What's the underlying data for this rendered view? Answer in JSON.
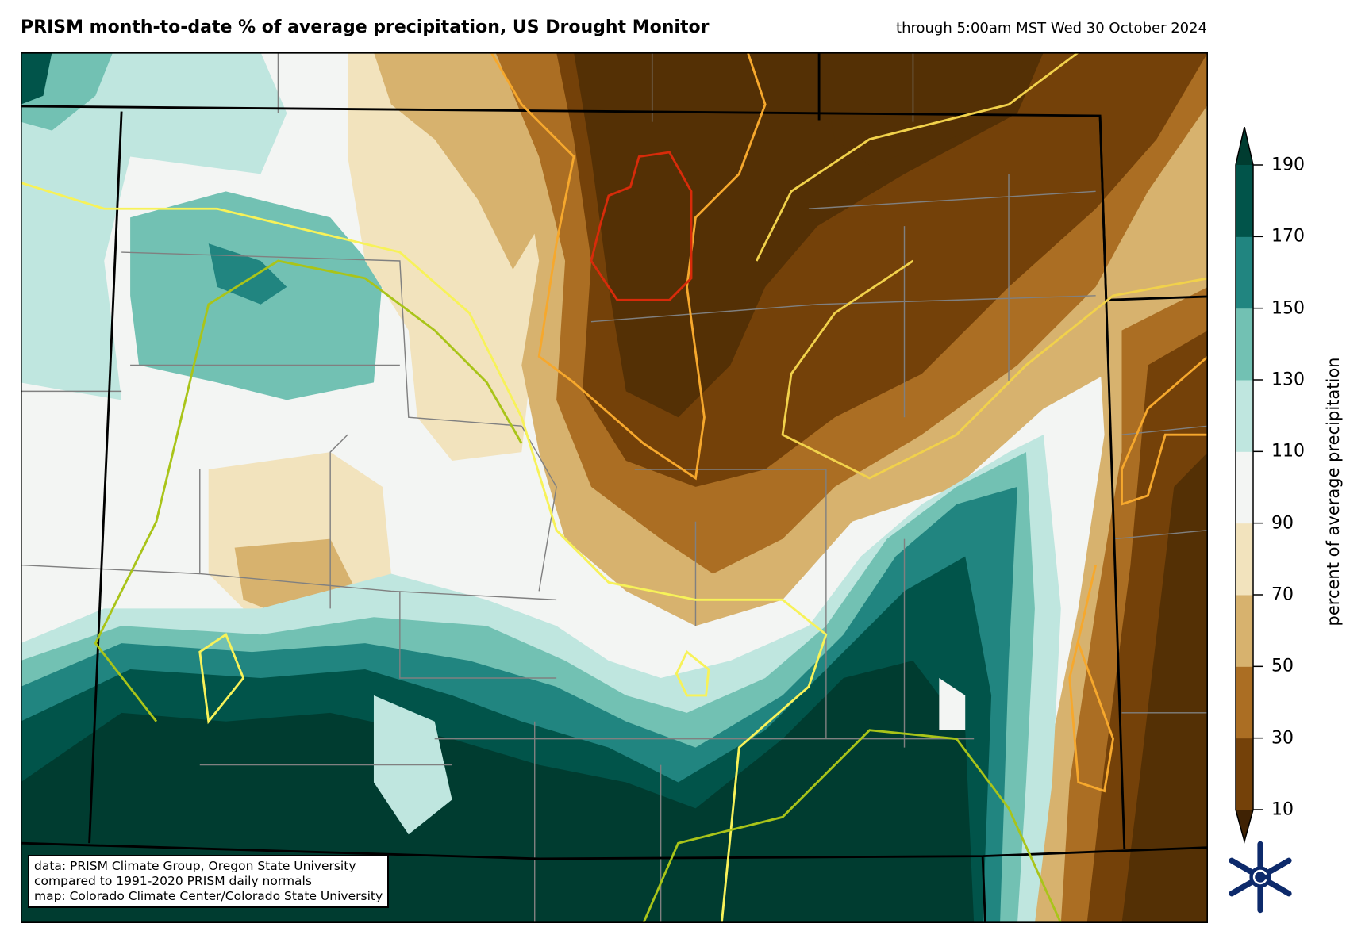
{
  "header": {
    "title": "PRISM month-to-date % of average precipitation, US Drought Monitor",
    "valid_time": "through 5:00am MST Wed 30 October 2024"
  },
  "credits": {
    "line1": "data: PRISM Climate Group, Oregon State University",
    "line2": "compared to 1991-2020 PRISM daily normals",
    "line3": "map: Colorado Climate Center/Colorado State University"
  },
  "colorbar": {
    "label": "percent of average precipitation",
    "ticks": [
      "10",
      "30",
      "50",
      "70",
      "90",
      "110",
      "130",
      "150",
      "170",
      "190"
    ],
    "colors": [
      "#3f2204",
      "#744109",
      "#ab6e23",
      "#d7b26e",
      "#f2e3bd",
      "#f3f5f3",
      "#bfe6df",
      "#72c1b3",
      "#218580",
      "#01544a",
      "#003c30"
    ]
  },
  "logo": {
    "text": "Colorado Climate Center"
  }
}
